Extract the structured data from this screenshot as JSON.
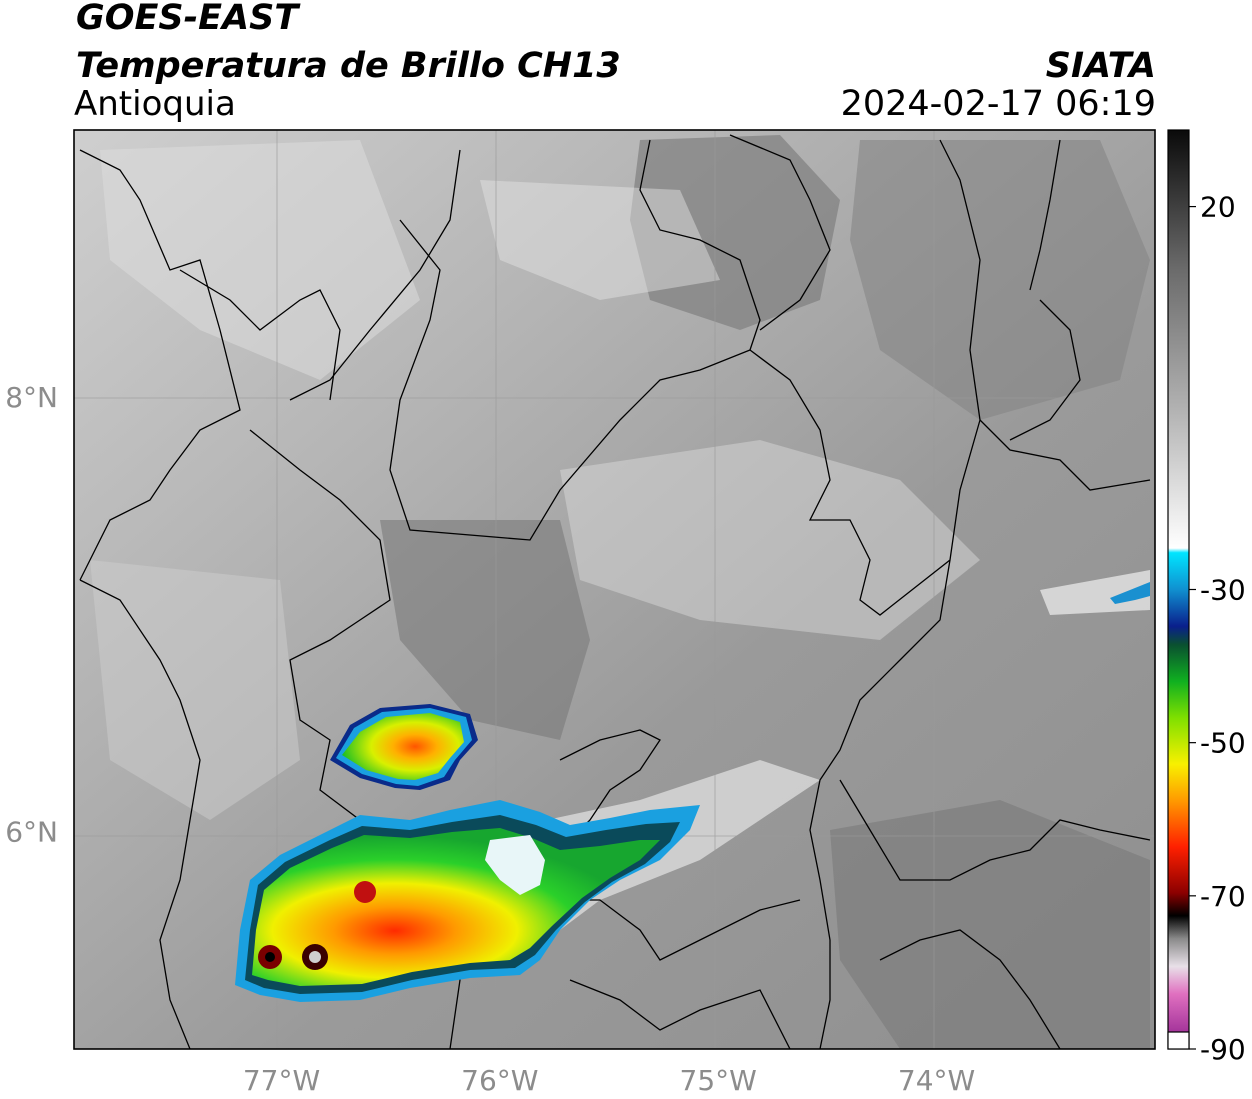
{
  "header": {
    "satellite": "GOES-EAST",
    "product": "Temperatura de Brillo CH13",
    "region": "Antioquia",
    "agency": "SIATA",
    "datetime": "2024-02-17 06:19"
  },
  "map": {
    "longitude_ticks": [
      {
        "label": "77°W",
        "value": -77
      },
      {
        "label": "76°W",
        "value": -76
      },
      {
        "label": "75°W",
        "value": -75
      },
      {
        "label": "74°W",
        "value": -74
      }
    ],
    "latitude_ticks": [
      {
        "label": "8°N",
        "value": 8
      },
      {
        "label": "6°N",
        "value": 6
      }
    ],
    "extent": {
      "lon_min": -77.95,
      "lon_max": -73.0,
      "lat_min": 5.0,
      "lat_max": 9.23
    },
    "gridlines": true
  },
  "colorbar": {
    "ticks": [
      {
        "label": "20",
        "value": 20
      },
      {
        "label": "-30",
        "value": -30
      },
      {
        "label": "-50",
        "value": -50
      },
      {
        "label": "-70",
        "value": -70
      },
      {
        "label": "-90",
        "value": -90
      }
    ],
    "range": [
      -90,
      30
    ],
    "colors": {
      "warm_gray_top": "#0a0a0a",
      "mid_gray": "#8a8a8a",
      "white": "#ffffff",
      "cyan": "#00e5ff",
      "dark_blue": "#0a1f8c",
      "green": "#18b818",
      "yellow": "#f0f000",
      "orange": "#ff9900",
      "red": "#e00000",
      "black": "#000000",
      "pink": "#e070c0",
      "purple": "#902090"
    }
  }
}
